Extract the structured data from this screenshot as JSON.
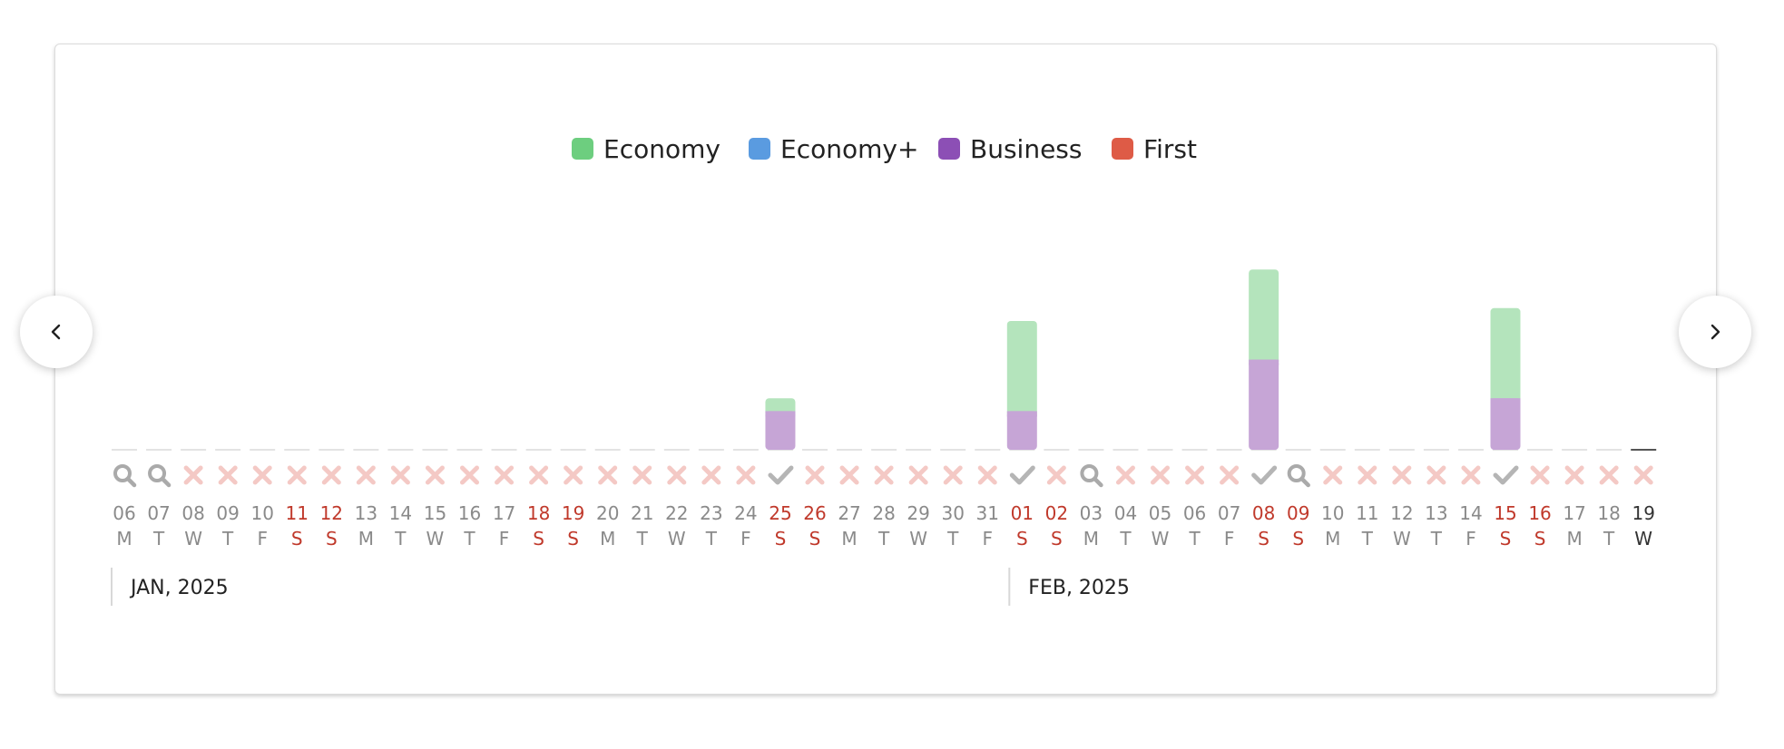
{
  "colors": {
    "economy": "#6dce7f",
    "economy_plus": "#5a9be0",
    "business": "#8c4fb5",
    "first": "#de5b46",
    "economy_bar": "#b4e4bc",
    "business_bar": "#c6a5d6",
    "weekend_text": "#c0392b",
    "weekday_text": "#8a8a8a",
    "today_text": "#333333",
    "cross": "#f4c9c5",
    "check": "#b5b5b5",
    "search": "#aaaaaa"
  },
  "navigation": {
    "prev_icon": "chevron-left-icon",
    "next_icon": "chevron-right-icon"
  },
  "chart_data": {
    "type": "bar",
    "stacked": true,
    "legend_position": "top-center",
    "series": [
      {
        "name": "Economy",
        "color_key": "economy"
      },
      {
        "name": "Economy+",
        "color_key": "economy_plus"
      },
      {
        "name": "Business",
        "color_key": "business"
      },
      {
        "name": "First",
        "color_key": "first"
      }
    ],
    "days": [
      {
        "date": "06",
        "dow": "M",
        "status": "search",
        "weekend": false
      },
      {
        "date": "07",
        "dow": "T",
        "status": "search",
        "weekend": false
      },
      {
        "date": "08",
        "dow": "W",
        "status": "none",
        "weekend": false
      },
      {
        "date": "09",
        "dow": "T",
        "status": "none",
        "weekend": false
      },
      {
        "date": "10",
        "dow": "F",
        "status": "none",
        "weekend": false
      },
      {
        "date": "11",
        "dow": "S",
        "status": "none",
        "weekend": true
      },
      {
        "date": "12",
        "dow": "S",
        "status": "none",
        "weekend": true
      },
      {
        "date": "13",
        "dow": "M",
        "status": "none",
        "weekend": false
      },
      {
        "date": "14",
        "dow": "T",
        "status": "none",
        "weekend": false
      },
      {
        "date": "15",
        "dow": "W",
        "status": "none",
        "weekend": false
      },
      {
        "date": "16",
        "dow": "T",
        "status": "none",
        "weekend": false
      },
      {
        "date": "17",
        "dow": "F",
        "status": "none",
        "weekend": false
      },
      {
        "date": "18",
        "dow": "S",
        "status": "none",
        "weekend": true
      },
      {
        "date": "19",
        "dow": "S",
        "status": "none",
        "weekend": true
      },
      {
        "date": "20",
        "dow": "M",
        "status": "none",
        "weekend": false
      },
      {
        "date": "21",
        "dow": "T",
        "status": "none",
        "weekend": false
      },
      {
        "date": "22",
        "dow": "W",
        "status": "none",
        "weekend": false
      },
      {
        "date": "23",
        "dow": "T",
        "status": "none",
        "weekend": false
      },
      {
        "date": "24",
        "dow": "F",
        "status": "none",
        "weekend": false
      },
      {
        "date": "25",
        "dow": "S",
        "status": "available",
        "weekend": true,
        "economy": 1,
        "business": 3
      },
      {
        "date": "26",
        "dow": "S",
        "status": "none",
        "weekend": true
      },
      {
        "date": "27",
        "dow": "M",
        "status": "none",
        "weekend": false
      },
      {
        "date": "28",
        "dow": "T",
        "status": "none",
        "weekend": false
      },
      {
        "date": "29",
        "dow": "W",
        "status": "none",
        "weekend": false
      },
      {
        "date": "30",
        "dow": "T",
        "status": "none",
        "weekend": false
      },
      {
        "date": "31",
        "dow": "F",
        "status": "none",
        "weekend": false
      },
      {
        "date": "01",
        "dow": "S",
        "status": "available",
        "weekend": true,
        "economy": 7,
        "business": 3
      },
      {
        "date": "02",
        "dow": "S",
        "status": "none",
        "weekend": true
      },
      {
        "date": "03",
        "dow": "M",
        "status": "search",
        "weekend": false
      },
      {
        "date": "04",
        "dow": "T",
        "status": "none",
        "weekend": false
      },
      {
        "date": "05",
        "dow": "W",
        "status": "none",
        "weekend": false
      },
      {
        "date": "06",
        "dow": "T",
        "status": "none",
        "weekend": false
      },
      {
        "date": "07",
        "dow": "F",
        "status": "none",
        "weekend": false
      },
      {
        "date": "08",
        "dow": "S",
        "status": "available",
        "weekend": true,
        "economy": 7,
        "business": 7
      },
      {
        "date": "09",
        "dow": "S",
        "status": "search",
        "weekend": true
      },
      {
        "date": "10",
        "dow": "M",
        "status": "none",
        "weekend": false
      },
      {
        "date": "11",
        "dow": "T",
        "status": "none",
        "weekend": false
      },
      {
        "date": "12",
        "dow": "W",
        "status": "none",
        "weekend": false
      },
      {
        "date": "13",
        "dow": "T",
        "status": "none",
        "weekend": false
      },
      {
        "date": "14",
        "dow": "F",
        "status": "none",
        "weekend": false
      },
      {
        "date": "15",
        "dow": "S",
        "status": "available",
        "weekend": true,
        "economy": 7,
        "business": 4
      },
      {
        "date": "16",
        "dow": "S",
        "status": "none",
        "weekend": true
      },
      {
        "date": "17",
        "dow": "M",
        "status": "none",
        "weekend": false
      },
      {
        "date": "18",
        "dow": "T",
        "status": "none",
        "weekend": false
      },
      {
        "date": "19",
        "dow": "W",
        "status": "none",
        "weekend": false,
        "today": true
      }
    ],
    "months": [
      {
        "label": "JAN, 2025",
        "start_index": 0
      },
      {
        "label": "FEB, 2025",
        "start_index": 26
      }
    ],
    "ylim": [
      0,
      14
    ]
  }
}
